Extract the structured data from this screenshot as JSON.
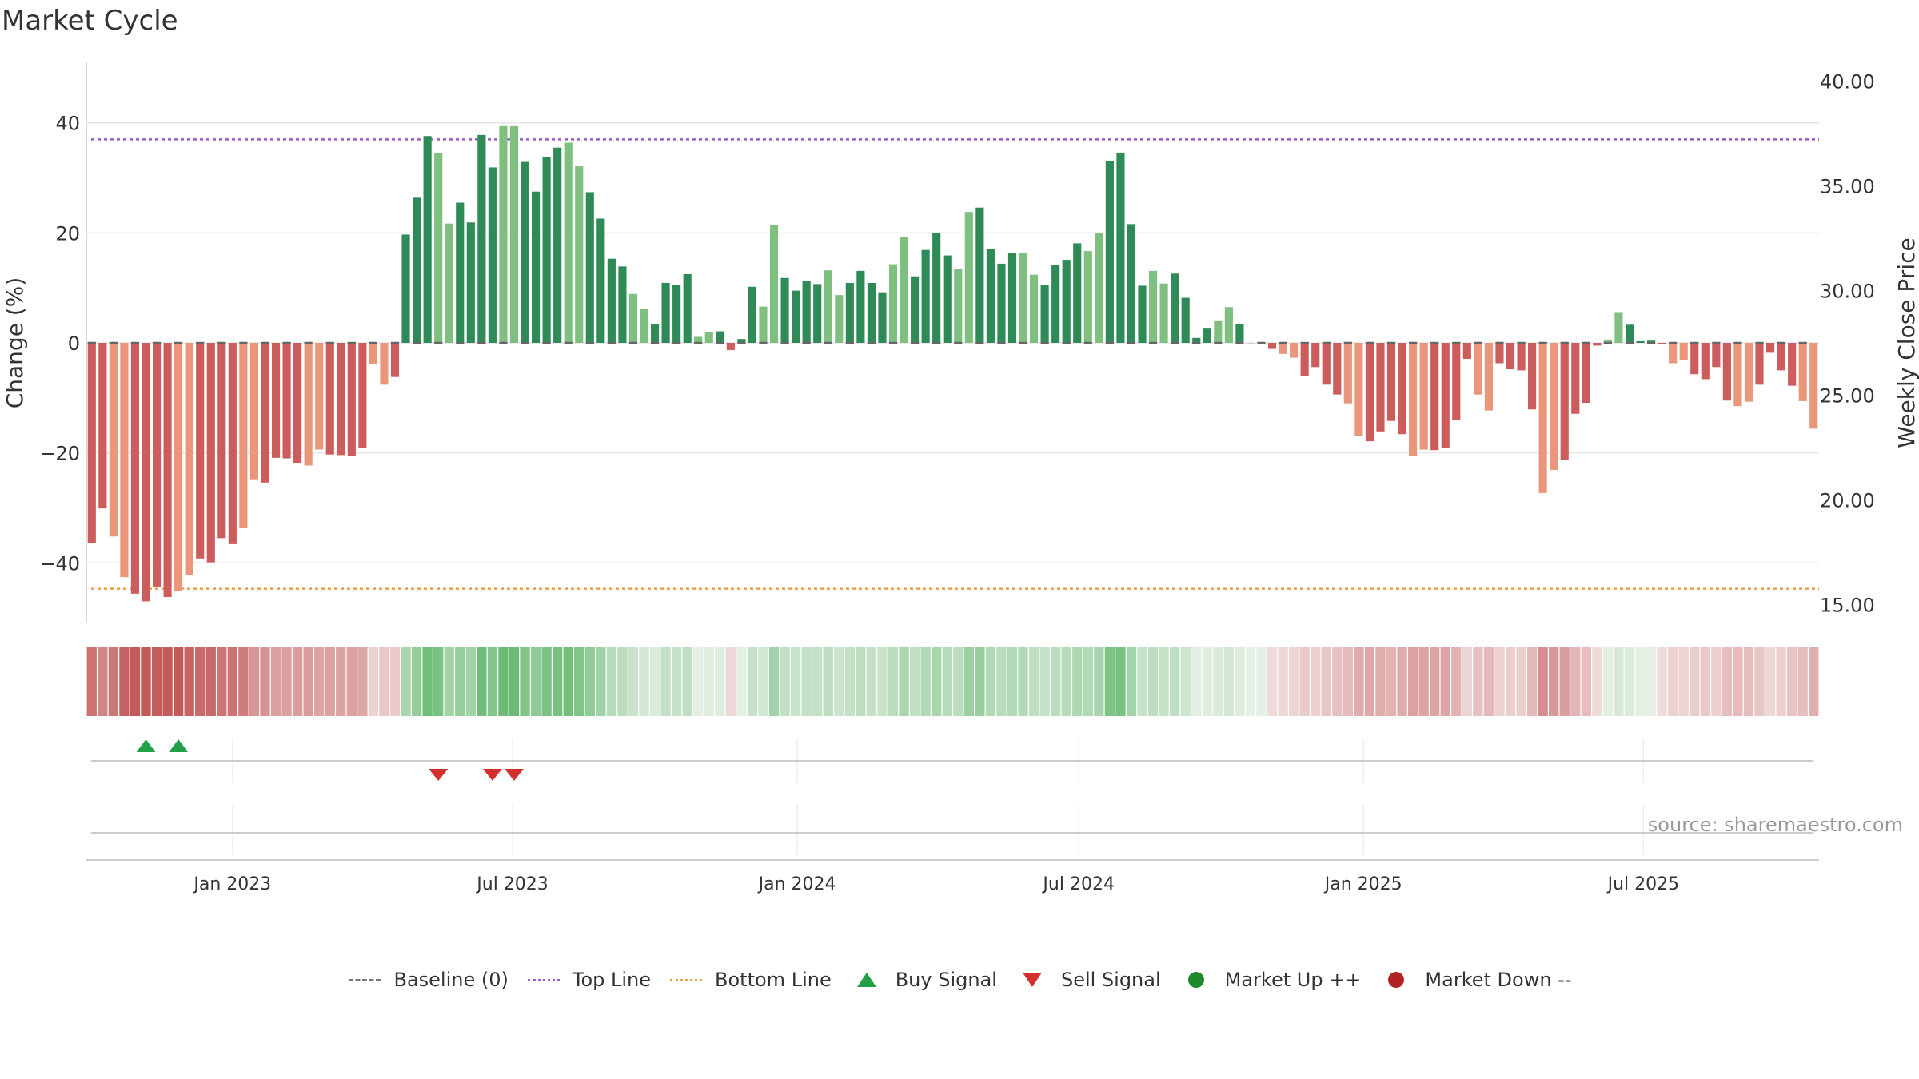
{
  "title": "Market Cycle",
  "source_text": "source: sharemaestro.com",
  "chart_data": {
    "type": "bar",
    "title": "Market Cycle",
    "y_left_label": "Change (%)",
    "y_right_label": "Weekly Close Price",
    "y_left_ticks": [
      "−40",
      "−20",
      "0",
      "20",
      "40"
    ],
    "y_left_tick_values": [
      -40,
      -20,
      0,
      20,
      40
    ],
    "y_right_ticks": [
      "15.00",
      "20.00",
      "25.00",
      "30.00",
      "35.00",
      "40.00"
    ],
    "y_right_tick_values": [
      15,
      20,
      25,
      30,
      35,
      40
    ],
    "ylim": [
      -51,
      51
    ],
    "y_right_lim": [
      14.1,
      40.9
    ],
    "x_ticks": [
      "Jan 2023",
      "Jul 2023",
      "Jan 2024",
      "Jul 2024",
      "Jan 2025",
      "Jul 2025"
    ],
    "x_tick_dates": [
      "2023-01-01",
      "2023-07-01",
      "2024-01-01",
      "2024-07-01",
      "2025-01-01",
      "2025-07-01"
    ],
    "x_start_date": "2022-10-02",
    "x_interval_days": 7,
    "grid": true,
    "top_line": 37,
    "bottom_line": -44.7,
    "values": [
      -36.4,
      -30.1,
      -35.2,
      -42.6,
      -45.6,
      -47,
      -44.3,
      -46.2,
      -45.2,
      -42.2,
      -39.2,
      -39.9,
      -35.5,
      -36.6,
      -33.6,
      -24.8,
      -25.4,
      -20.9,
      -21,
      -21.8,
      -22.3,
      -19.4,
      -20.3,
      -20.4,
      -20.6,
      -19.1,
      -3.8,
      -7.6,
      -6.2,
      19.7,
      26.4,
      37.6,
      34.5,
      21.7,
      25.5,
      21.9,
      37.8,
      31.9,
      39.4,
      39.4,
      32.9,
      27.5,
      33.8,
      35.5,
      36.4,
      32.1,
      27.4,
      22.6,
      15.3,
      13.9,
      8.9,
      6.2,
      3.4,
      10.9,
      10.5,
      12.5,
      1.1,
      1.9,
      2.1,
      -1.3,
      0.7,
      10.2,
      6.6,
      21.4,
      11.8,
      9.5,
      11.3,
      10.7,
      13.2,
      8.7,
      10.9,
      13.1,
      10.9,
      9.2,
      14.3,
      19.2,
      12.1,
      16.9,
      20,
      15.9,
      13.5,
      23.8,
      24.6,
      17.1,
      14.4,
      16.4,
      16.4,
      12.4,
      10.5,
      14.1,
      15.1,
      18.1,
      16.7,
      19.9,
      33,
      34.6,
      21.6,
      10.4,
      13.1,
      10.8,
      12.6,
      8.2,
      0.9,
      2.6,
      4.1,
      6.5,
      3.4,
      0,
      0,
      -1.1,
      -2,
      -2.7,
      -6,
      -4.4,
      -7.6,
      -9.4,
      -11,
      -16.9,
      -17.9,
      -16.1,
      -14.2,
      -16.6,
      -20.5,
      -19.4,
      -19.5,
      -19.1,
      -14.1,
      -2.9,
      -9.4,
      -12.3,
      -3.7,
      -4.8,
      -5,
      -12.1,
      -27.3,
      -23.1,
      -21.3,
      -12.9,
      -10.9,
      -0.5,
      0.6,
      5.6,
      3.3,
      0.3,
      0.4,
      -0.2,
      -3.7,
      -3.2,
      -5.7,
      -6.6,
      -4.4,
      -10.5,
      -11.5,
      -10.7,
      -7.6,
      -1.8,
      -5,
      -7.8,
      -10.6,
      -15.6
    ],
    "strong_bar_colors": {
      "up": "#2e8b57",
      "up_light": "#7fbf7f",
      "down": "#cd5c5c",
      "down_light": "#e9967a"
    },
    "buy_signals": [
      "2022-11-06",
      "2022-11-27"
    ],
    "sell_signals": [
      "2023-05-14",
      "2023-06-18",
      "2023-07-02"
    ]
  },
  "legend": [
    {
      "label": "Baseline (0)",
      "symbol": "dash",
      "color": "#777777"
    },
    {
      "label": "Top Line",
      "symbol": "dotted",
      "color": "#9b59d0"
    },
    {
      "label": "Bottom Line",
      "symbol": "dotted",
      "color": "#e8a04c"
    },
    {
      "label": "Buy Signal",
      "symbol": "triangle-up",
      "color": "#22a045"
    },
    {
      "label": "Sell Signal",
      "symbol": "triangle-down",
      "color": "#d32f2f"
    },
    {
      "label": "Market Up ++",
      "symbol": "dot",
      "color": "#1f8a2c"
    },
    {
      "label": "Market Down --",
      "symbol": "dot",
      "color": "#b22222"
    }
  ]
}
